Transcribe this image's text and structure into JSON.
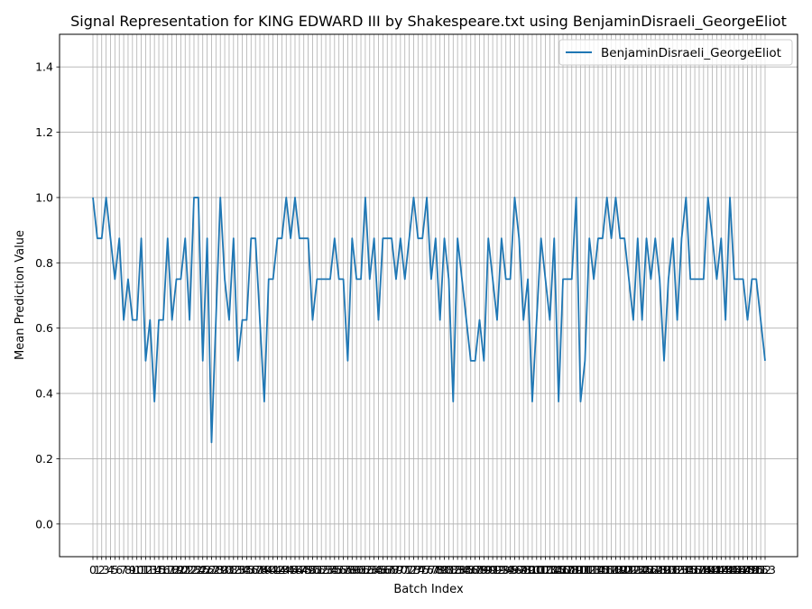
{
  "chart_data": {
    "type": "line",
    "title": "Signal Representation for KING EDWARD III by Shakespeare.txt using BenjaminDisraeli_GeorgeEliot",
    "xlabel": "Batch Index",
    "ylabel": "Mean Prediction Value",
    "ylim": [
      -0.1,
      1.5
    ],
    "y_ticks": [
      0.0,
      0.2,
      0.4,
      0.6,
      0.8,
      1.0,
      1.2,
      1.4
    ],
    "grid": true,
    "legend_position": "top-right",
    "series": [
      {
        "name": "BenjaminDisraeli_GeorgeEliot",
        "color": "#1f77b4",
        "values": [
          1.0,
          0.875,
          0.875,
          1.0,
          0.875,
          0.75,
          0.875,
          0.625,
          0.75,
          0.625,
          0.625,
          0.875,
          0.5,
          0.625,
          0.375,
          0.625,
          0.625,
          0.875,
          0.625,
          0.75,
          0.75,
          0.875,
          0.625,
          1.0,
          1.0,
          0.5,
          0.875,
          0.25,
          0.625,
          1.0,
          0.75,
          0.625,
          0.875,
          0.5,
          0.625,
          0.625,
          0.875,
          0.875,
          0.625,
          0.375,
          0.75,
          0.75,
          0.875,
          0.875,
          1.0,
          0.875,
          1.0,
          0.875,
          0.875,
          0.875,
          0.625,
          0.75,
          0.75,
          0.75,
          0.75,
          0.875,
          0.75,
          0.75,
          0.5,
          0.875,
          0.75,
          0.75,
          1.0,
          0.75,
          0.875,
          0.625,
          0.875,
          0.875,
          0.875,
          0.75,
          0.875,
          0.75,
          0.875,
          1.0,
          0.875,
          0.875,
          1.0,
          0.75,
          0.875,
          0.625,
          0.875,
          0.75,
          0.375,
          0.875,
          0.75,
          0.625,
          0.5,
          0.5,
          0.625,
          0.5,
          0.875,
          0.75,
          0.625,
          0.875,
          0.75,
          0.75,
          1.0,
          0.875,
          0.625,
          0.75,
          0.375,
          0.625,
          0.875,
          0.75,
          0.625,
          0.875,
          0.375,
          0.75,
          0.75,
          0.75,
          1.0,
          0.375,
          0.5,
          0.875,
          0.75,
          0.875,
          0.875,
          1.0,
          0.875,
          1.0,
          0.875,
          0.875,
          0.75,
          0.625,
          0.875,
          0.625,
          0.875,
          0.75,
          0.875,
          0.75,
          0.5,
          0.75,
          0.875,
          0.625,
          0.875,
          1.0,
          0.75,
          0.75,
          0.75,
          0.75,
          1.0,
          0.875,
          0.75,
          0.875,
          0.625,
          1.0,
          0.75,
          0.75,
          0.75,
          0.625,
          0.75,
          0.75,
          0.625,
          0.5
        ]
      }
    ]
  }
}
